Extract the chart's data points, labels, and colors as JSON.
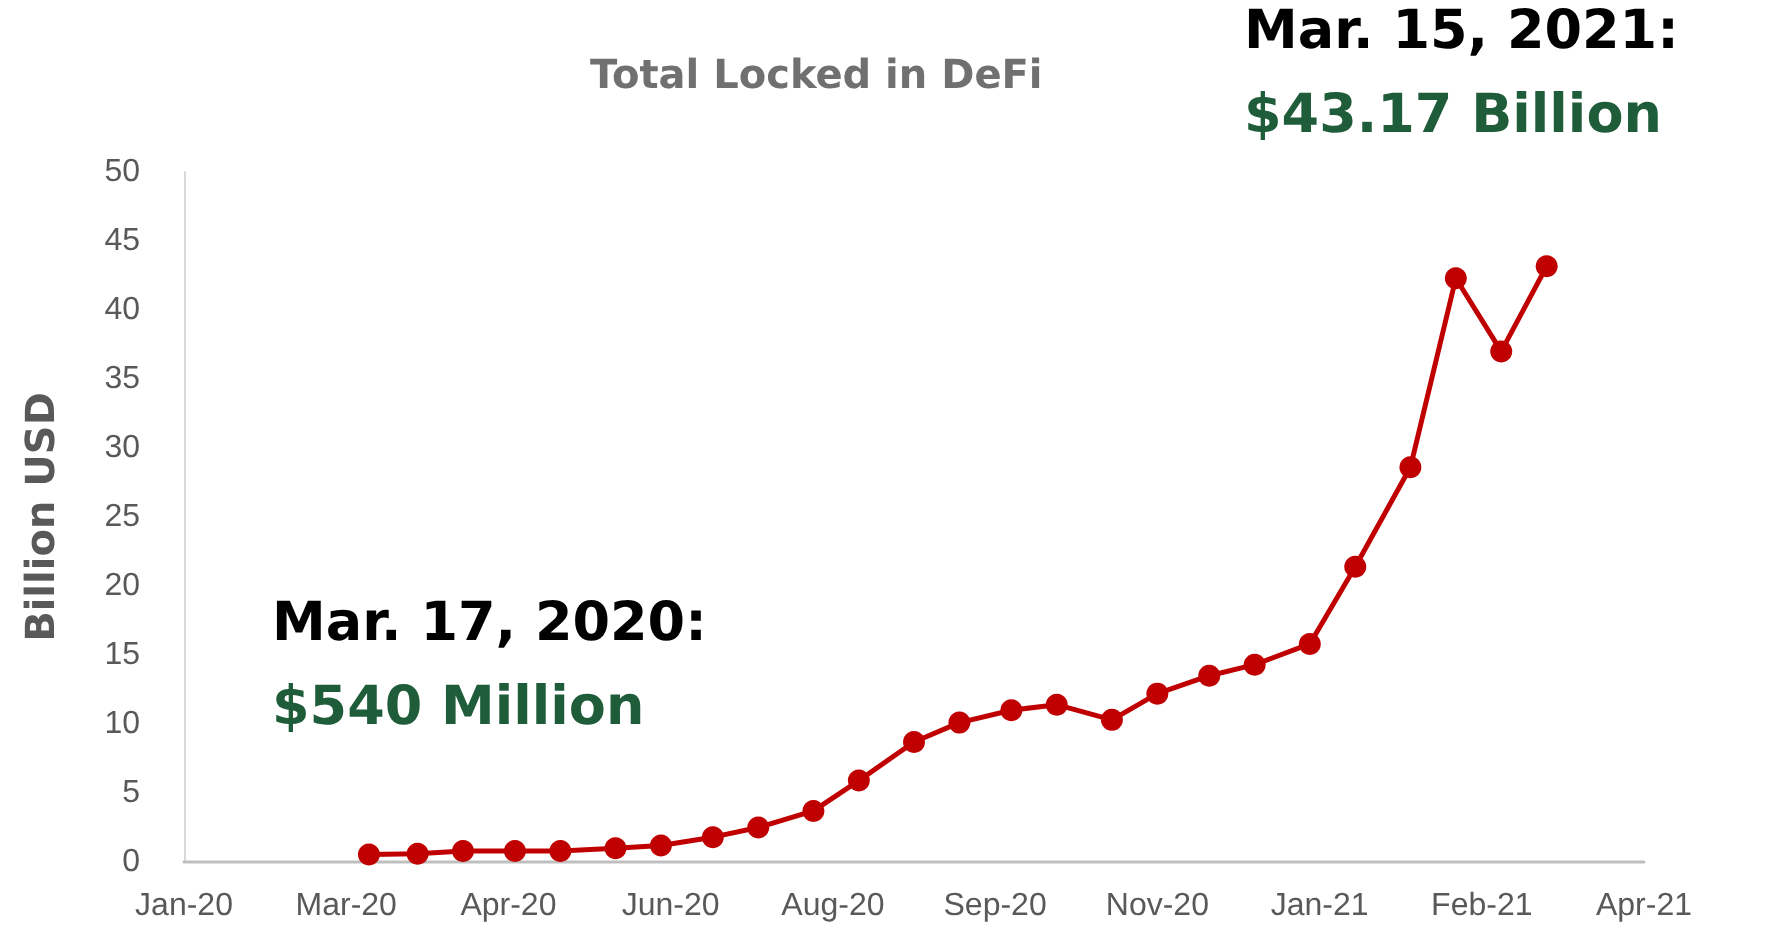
{
  "chart_data": {
    "type": "line",
    "title": "Total Locked in DeFi",
    "ylabel": "Billion USD",
    "x": [
      "2020-03-17",
      "2020-04-01",
      "2020-04-15",
      "2020-05-01",
      "2020-05-15",
      "2020-06-01",
      "2020-06-15",
      "2020-07-01",
      "2020-07-15",
      "2020-08-01",
      "2020-08-15",
      "2020-09-01",
      "2020-09-15",
      "2020-10-01",
      "2020-10-15",
      "2020-11-01",
      "2020-11-15",
      "2020-12-01",
      "2020-12-15",
      "2021-01-01",
      "2021-01-15",
      "2021-02-01",
      "2021-02-15",
      "2021-03-01",
      "2021-03-15"
    ],
    "series": [
      {
        "color": "#c00000",
        "values": [
          0.54,
          0.6,
          0.8,
          0.8,
          0.8,
          1.0,
          1.2,
          1.8,
          2.5,
          3.7,
          5.9,
          8.7,
          10.1,
          11.0,
          11.4,
          10.3,
          12.2,
          13.5,
          14.3,
          15.8,
          21.4,
          28.6,
          42.3,
          37.0,
          43.17
        ]
      }
    ],
    "xlim": [
      "2020-01-20",
      "2021-04-14"
    ],
    "xticks": [
      {
        "value": "2020-01-20",
        "label": "Jan-20"
      },
      {
        "value": "2020-03-10",
        "label": "Mar-20"
      },
      {
        "value": "2020-04-29",
        "label": "Apr-20"
      },
      {
        "value": "2020-06-18",
        "label": "Jun-20"
      },
      {
        "value": "2020-08-07",
        "label": "Aug-20"
      },
      {
        "value": "2020-09-26",
        "label": "Sep-20"
      },
      {
        "value": "2020-11-15",
        "label": "Nov-20"
      },
      {
        "value": "2021-01-04",
        "label": "Jan-21"
      },
      {
        "value": "2021-02-23",
        "label": "Feb-21"
      },
      {
        "value": "2021-04-14",
        "label": "Apr-21"
      }
    ],
    "ylim": [
      0,
      50
    ],
    "yticks": [
      0,
      5,
      10,
      15,
      20,
      25,
      30,
      35,
      40,
      45,
      50
    ],
    "grid": false,
    "marker": "circle",
    "line_style": "solid",
    "annotations": [
      "Mar. 17, 2020:\n$540 Million",
      "Mar. 15, 2021:\n$43.17 Billion"
    ]
  }
}
